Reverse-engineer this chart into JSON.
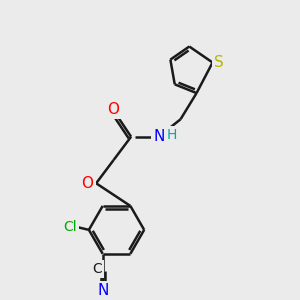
{
  "bg_color": "#ebebeb",
  "bond_color": "#1a1a1a",
  "bond_width": 1.8,
  "atom_colors": {
    "O": "#ff0000",
    "N": "#0000ff",
    "S": "#b8b800",
    "Cl": "#00aa00",
    "H": "#00aaaa",
    "C": "#1a1a1a"
  },
  "font_size": 10,
  "fig_size": [
    3.0,
    3.0
  ],
  "dpi": 100
}
